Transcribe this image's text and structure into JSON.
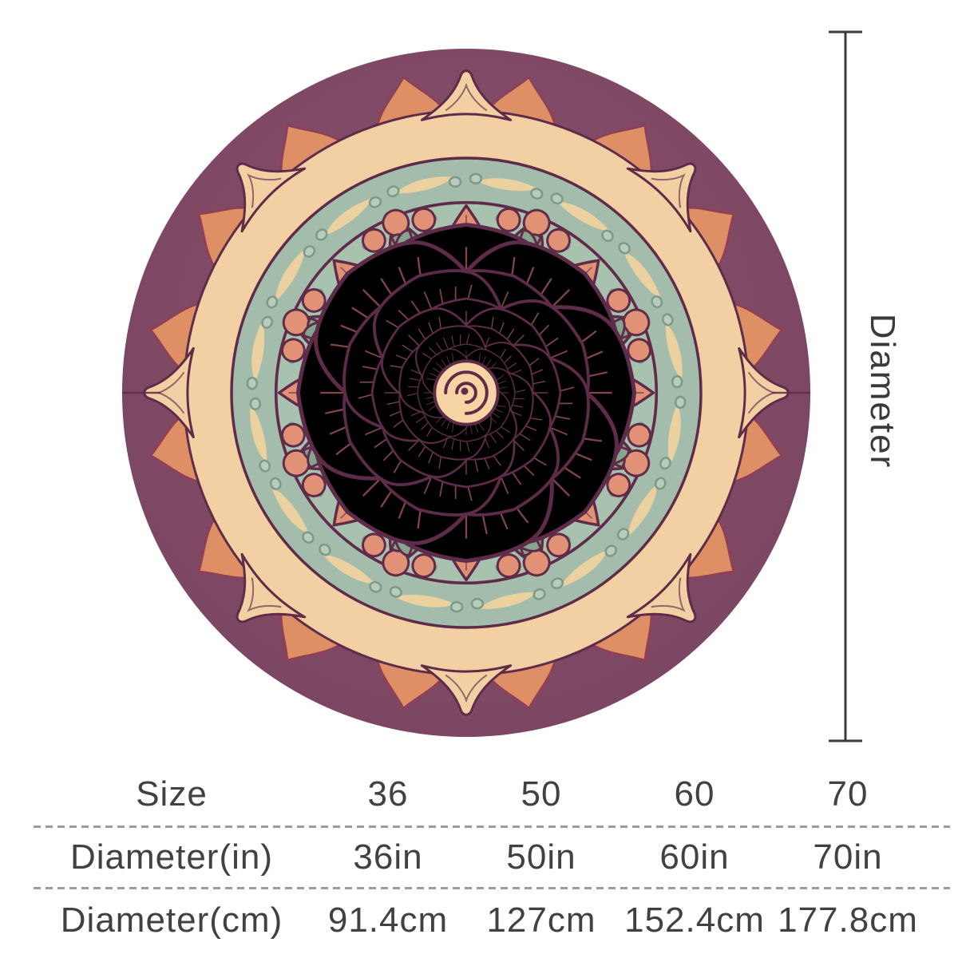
{
  "image": {
    "description": "Round plum blanket printed with a layered peach rose mandala, sage green ring and cream ornaments",
    "palette": {
      "plum": "#8b5370",
      "plum_dark": "#7a4560",
      "cream": "#f3cfa4",
      "outline": "#5e2c49",
      "green_band": "#a3bcab",
      "green_disc": "#a9c1af",
      "dot_fill": "#b7ccbd",
      "dot_stroke": "#7c9a86",
      "squiggle": "#eed29e",
      "sage": "#87a48f",
      "salmon": "#e09176",
      "leaf_orange": "#df8f66",
      "leaf_stroke": "#8f3f56",
      "vein": "#a2565a",
      "peach_tip": "#f6cf9e",
      "peach_base": "#e18a5c",
      "mid_tip": "#f9d9ab",
      "mid_base": "#e89a6b",
      "cream_tip": "#fae0b4",
      "cream_base": "#efae7e",
      "peach_light": "#f7d4a4"
    }
  },
  "dimension": {
    "label": "Diameter",
    "line_color": "#3a3a3a"
  },
  "size_table": {
    "text_color": "#414141",
    "separator_color": "#9c9c9c",
    "rows": [
      {
        "label": "Size",
        "values": [
          "36",
          "50",
          "60",
          "70"
        ]
      },
      {
        "label": "Diameter(in)",
        "values": [
          "36in",
          "50in",
          "60in",
          "70in"
        ]
      },
      {
        "label": "Diameter(cm)",
        "values": [
          "91.4cm",
          "127cm",
          "152.4cm",
          "177.8cm"
        ]
      }
    ]
  }
}
